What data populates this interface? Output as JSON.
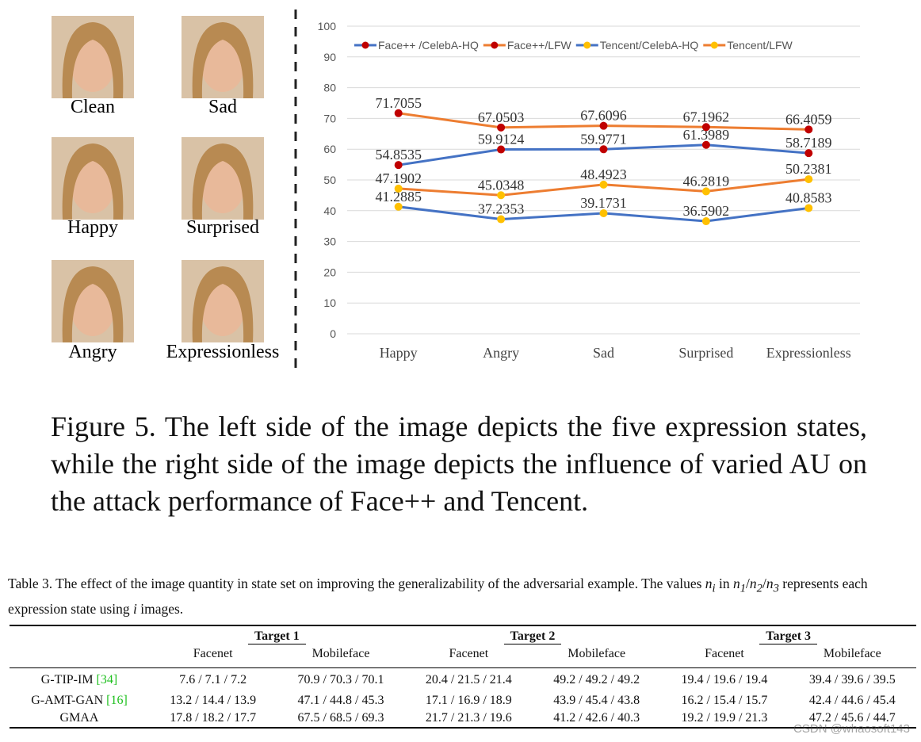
{
  "faces": [
    "Clean",
    "Sad",
    "Happy",
    "Surprised",
    "Angry",
    "Expressionless"
  ],
  "chart_data": {
    "type": "line",
    "categories": [
      "Happy",
      "Angry",
      "Sad",
      "Surprised",
      "Expressionless"
    ],
    "ylim": [
      0,
      100
    ],
    "yticks": [
      0,
      10,
      20,
      30,
      40,
      50,
      60,
      70,
      80,
      90,
      100
    ],
    "grid": true,
    "series": [
      {
        "name": "Face++ /CelebA-HQ",
        "color": "#4472c4",
        "marker_color": "#c00000",
        "values": [
          54.8535,
          59.9124,
          59.9771,
          61.3989,
          58.7189
        ]
      },
      {
        "name": "Face++/LFW",
        "color": "#ed7d31",
        "marker_color": "#c00000",
        "values": [
          71.7055,
          67.0503,
          67.6096,
          67.1962,
          66.4059
        ]
      },
      {
        "name": "Tencent/CelebA-HQ",
        "color": "#4472c4",
        "marker_color": "#ffc000",
        "values": [
          41.2885,
          37.2353,
          39.1731,
          36.5902,
          40.8583
        ]
      },
      {
        "name": "Tencent/LFW",
        "color": "#ed7d31",
        "marker_color": "#ffc000",
        "values": [
          47.1902,
          45.0348,
          48.4923,
          46.2819,
          50.2381
        ]
      }
    ]
  },
  "figure_caption": "Figure 5.  The left side of the image depicts the five expression states, while the right side of the image depicts the influence of varied AU on the attack performance of Face++ and Tencent.",
  "table": {
    "caption": [
      "Table 3.  The effect of the image quantity in state set on improving the generalizability of the adversarial example.  The values ",
      "n",
      "i",
      " in ",
      "n",
      "1",
      "/",
      "n",
      "2",
      "/",
      "n",
      "3",
      " represents each expression state using ",
      "i",
      " images."
    ],
    "groups": [
      "Target 1",
      "Target 2",
      "Target 3"
    ],
    "subheaders": [
      "Facenet",
      "Mobileface",
      "Facenet",
      "Mobileface",
      "Facenet",
      "Mobileface"
    ],
    "rows": [
      {
        "name": "G-TIP-IM",
        "cite": "[34]",
        "cells": [
          "7.6 / 7.1 / 7.2",
          "70.9 / 70.3 / 70.1",
          "20.4 / 21.5 / 21.4",
          "49.2 / 49.2 / 49.2",
          "19.4 / 19.6 / 19.4",
          "39.4 / 39.6 / 39.5"
        ]
      },
      {
        "name": "G-AMT-GAN",
        "cite": "[16]",
        "cells": [
          "13.2 / 14.4 / 13.9",
          "47.1 / 44.8 / 45.3",
          "17.1 / 16.9 / 18.9",
          "43.9 / 45.4 / 43.8",
          "16.2 / 15.4 / 15.7",
          "42.4 / 44.6 / 45.4"
        ]
      },
      {
        "name": "GMAA",
        "cite": null,
        "cells": [
          "17.8 / 18.2 / 17.7",
          "67.5 / 68.5 / 69.3",
          "21.7 / 21.3 / 19.6",
          "41.2 / 42.6 / 40.3",
          "19.2 / 19.9 / 21.3",
          "47.2 / 45.6 / 44.7"
        ]
      }
    ]
  },
  "watermark": "CSDN @whaosoft143"
}
